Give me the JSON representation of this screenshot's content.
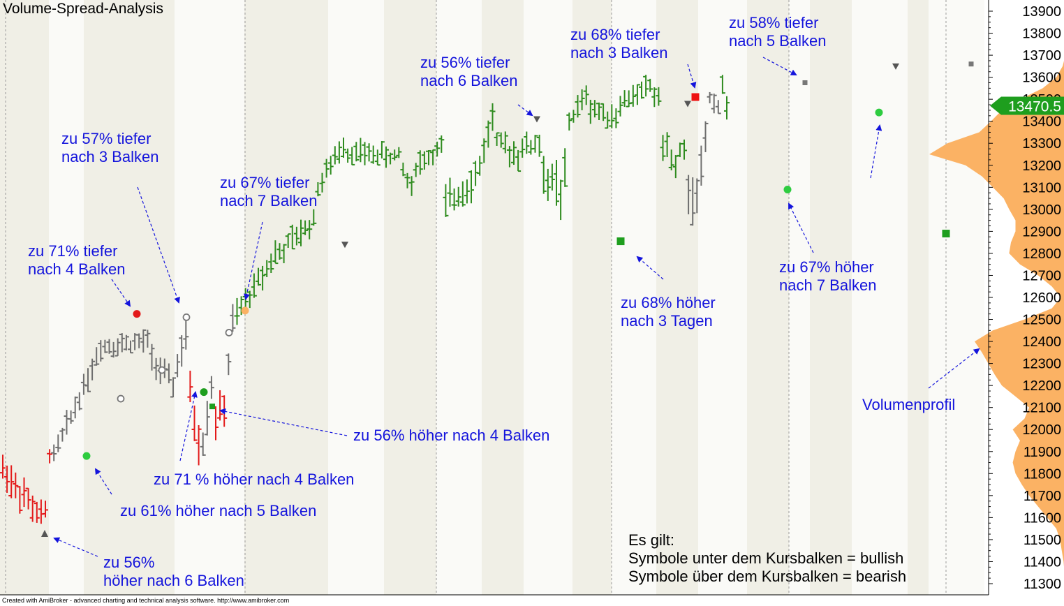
{
  "title": "Volume-Spread-Analysis",
  "credit": "Created with AmiBroker - advanced charting and technical analysis software. http://www.amibroker.com",
  "price_label": "13470.5",
  "notes": {
    "line1": "Es gilt:",
    "line2": "Symbole unter dem Kursbalken = bullish",
    "line3": "Symbole über dem Kursbalken = bearish"
  },
  "annotations": [
    {
      "id": "a1",
      "lines": [
        "zu 71% tiefer",
        "nach 4 Balken"
      ]
    },
    {
      "id": "a2",
      "lines": [
        "zu 57% tiefer",
        "nach 3 Balken"
      ]
    },
    {
      "id": "a3",
      "lines": [
        "zu 67% tiefer",
        "nach 7 Balken"
      ]
    },
    {
      "id": "a4",
      "lines": [
        "zu 56% tiefer",
        "nach 6 Balken"
      ]
    },
    {
      "id": "a5",
      "lines": [
        "zu 68% tiefer",
        "nach 3 Balken"
      ]
    },
    {
      "id": "a6",
      "lines": [
        "zu 58% tiefer",
        "nach 5 Balken"
      ]
    },
    {
      "id": "a7",
      "lines": [
        "zu 56% höher nach 4 Balken"
      ]
    },
    {
      "id": "a8",
      "lines": [
        "zu 71 % höher nach 4 Balken"
      ]
    },
    {
      "id": "a9",
      "lines": [
        "zu 61% höher nach 5 Balken"
      ]
    },
    {
      "id": "a10",
      "lines": [
        "zu 56%",
        "höher nach 6 Balken"
      ]
    },
    {
      "id": "a11",
      "lines": [
        "zu 68% höher",
        "nach 3 Tagen"
      ]
    },
    {
      "id": "a12",
      "lines": [
        "zu 67% höher",
        "nach 7 Balken"
      ]
    },
    {
      "id": "a13",
      "lines": [
        "Volumenprofil"
      ]
    }
  ],
  "colors": {
    "bull": "#2e8b1e",
    "bear": "#e31a1a",
    "neutral": "#6e6e6e",
    "volume_profile": "#fbb264",
    "annotation": "#1414dc",
    "price_label_bg": "#1e9e1e",
    "band": "#f0efe6"
  },
  "chart_data": {
    "type": "ohlc",
    "y_axis": {
      "min": 11250,
      "max": 13950,
      "ticks": [
        11300,
        11400,
        11500,
        11600,
        11700,
        11800,
        11900,
        12000,
        12100,
        12200,
        12300,
        12400,
        12500,
        12600,
        12700,
        12800,
        12900,
        13000,
        13100,
        13200,
        13300,
        13400,
        13500,
        13600,
        13700,
        13800,
        13900
      ]
    },
    "last_price": 13470.5,
    "segments": [
      {
        "color": "bear",
        "from": 11820,
        "to": 11600,
        "n": 10,
        "amp": 90
      },
      {
        "color": "bear",
        "from": 11620,
        "to": 11900,
        "n": 2,
        "amp": 60
      },
      {
        "color": "neutral",
        "from": 11880,
        "to": 12330,
        "n": 11,
        "amp": 60
      },
      {
        "color": "neutral",
        "from": 12380,
        "to": 12400,
        "n": 12,
        "amp": 60
      },
      {
        "color": "neutral",
        "from": 12320,
        "to": 12200,
        "n": 6,
        "amp": 70
      },
      {
        "color": "neutral",
        "from": 12300,
        "to": 12420,
        "n": 3,
        "amp": 100
      },
      {
        "color": "bear",
        "from": 12150,
        "to": 11950,
        "n": 3,
        "amp": 120
      },
      {
        "color": "neutral",
        "from": 11950,
        "to": 12200,
        "n": 3,
        "amp": 90
      },
      {
        "color": "bear",
        "from": 12050,
        "to": 12100,
        "n": 3,
        "amp": 90
      },
      {
        "color": "neutral",
        "from": 12300,
        "to": 12480,
        "n": 2,
        "amp": 90
      },
      {
        "color": "bull",
        "from": 12520,
        "to": 12800,
        "n": 10,
        "amp": 70
      },
      {
        "color": "bull",
        "from": 12800,
        "to": 12950,
        "n": 9,
        "amp": 70
      },
      {
        "color": "bull",
        "from": 13100,
        "to": 13300,
        "n": 7,
        "amp": 60
      },
      {
        "color": "bull",
        "from": 13260,
        "to": 13240,
        "n": 13,
        "amp": 60
      },
      {
        "color": "bull",
        "from": 13180,
        "to": 13100,
        "n": 3,
        "amp": 60
      },
      {
        "color": "bull",
        "from": 13200,
        "to": 13280,
        "n": 7,
        "amp": 60
      },
      {
        "color": "bull",
        "from": 13020,
        "to": 13150,
        "n": 8,
        "amp": 90
      },
      {
        "color": "bull",
        "from": 13200,
        "to": 13420,
        "n": 4,
        "amp": 80
      },
      {
        "color": "bull",
        "from": 13300,
        "to": 13250,
        "n": 6,
        "amp": 70
      },
      {
        "color": "bull",
        "from": 13280,
        "to": 13300,
        "n": 5,
        "amp": 70
      },
      {
        "color": "bull",
        "from": 13150,
        "to": 13100,
        "n": 4,
        "amp": 120
      },
      {
        "color": "bull",
        "from": 13050,
        "to": 13150,
        "n": 2,
        "amp": 120
      },
      {
        "color": "bull",
        "from": 13400,
        "to": 13520,
        "n": 5,
        "amp": 60
      },
      {
        "color": "bull",
        "from": 13460,
        "to": 13420,
        "n": 7,
        "amp": 60
      },
      {
        "color": "bull",
        "from": 13480,
        "to": 13560,
        "n": 8,
        "amp": 60
      },
      {
        "color": "bull",
        "from": 13520,
        "to": 13500,
        "n": 2,
        "amp": 80
      },
      {
        "color": "bull",
        "from": 13300,
        "to": 13200,
        "n": 4,
        "amp": 80
      },
      {
        "color": "bull",
        "from": 13250,
        "to": 13250,
        "n": 2,
        "amp": 60
      },
      {
        "color": "neutral",
        "from": 13100,
        "to": 13050,
        "n": 2,
        "amp": 150
      },
      {
        "color": "neutral",
        "from": 13050,
        "to": 13300,
        "n": 3,
        "amp": 100
      },
      {
        "color": "neutral",
        "from": 13500,
        "to": 13480,
        "n": 3,
        "amp": 60
      },
      {
        "color": "bull",
        "from": 13560,
        "to": 13470,
        "n": 2,
        "amp": 70
      }
    ],
    "markers": [
      {
        "shape": "tri-up",
        "color": "#555555",
        "x": 64,
        "y": 11525
      },
      {
        "shape": "dot",
        "color": "#2ecc40",
        "x": 124,
        "y": 11880
      },
      {
        "shape": "ring",
        "color": "#777777",
        "x": 173,
        "y": 12140
      },
      {
        "shape": "dot",
        "color": "#e31a1a",
        "x": 196,
        "y": 12525
      },
      {
        "shape": "ring",
        "color": "#777777",
        "x": 232,
        "y": 12270
      },
      {
        "shape": "ring",
        "color": "#777777",
        "x": 267,
        "y": 12510
      },
      {
        "shape": "dot",
        "color": "#1e9e1e",
        "x": 292,
        "y": 12170
      },
      {
        "shape": "square",
        "color": "#1e9e1e",
        "x": 304,
        "y": 12105,
        "size": 8
      },
      {
        "shape": "ring",
        "color": "#777777",
        "x": 328,
        "y": 12440
      },
      {
        "shape": "dot",
        "color": "#fbb264",
        "x": 351,
        "y": 12540
      },
      {
        "shape": "tri-down",
        "color": "#555555",
        "x": 494,
        "y": 12840
      },
      {
        "shape": "tri-down",
        "color": "#555555",
        "x": 769,
        "y": 13410
      },
      {
        "shape": "square",
        "color": "#1e9e1e",
        "x": 889,
        "y": 12855,
        "size": 11
      },
      {
        "shape": "tri-down",
        "color": "#555555",
        "x": 985,
        "y": 13480
      },
      {
        "shape": "square",
        "color": "#ee1111",
        "x": 996,
        "y": 13510,
        "size": 11
      },
      {
        "shape": "dot",
        "color": "#2ecc40",
        "x": 1128,
        "y": 13090
      },
      {
        "shape": "square",
        "color": "#777777",
        "x": 1153,
        "y": 13575,
        "size": 7
      },
      {
        "shape": "dot",
        "color": "#2ecc40",
        "x": 1259,
        "y": 13440
      },
      {
        "shape": "tri-down",
        "color": "#555555",
        "x": 1283,
        "y": 13650
      },
      {
        "shape": "square",
        "color": "#1e9e1e",
        "x": 1355,
        "y": 12890,
        "size": 11
      },
      {
        "shape": "square",
        "color": "#777777",
        "x": 1391,
        "y": 13660,
        "size": 7
      }
    ],
    "volume_profile": [
      [
        11300,
        0
      ],
      [
        11400,
        2
      ],
      [
        11450,
        4
      ],
      [
        11500,
        6
      ],
      [
        11550,
        10
      ],
      [
        11600,
        20
      ],
      [
        11650,
        30
      ],
      [
        11700,
        40
      ],
      [
        11750,
        48
      ],
      [
        11800,
        55
      ],
      [
        11850,
        58
      ],
      [
        11900,
        55
      ],
      [
        11950,
        50
      ],
      [
        12000,
        58
      ],
      [
        12050,
        45
      ],
      [
        12100,
        40
      ],
      [
        12150,
        55
      ],
      [
        12200,
        70
      ],
      [
        12250,
        78
      ],
      [
        12300,
        85
      ],
      [
        12350,
        92
      ],
      [
        12400,
        100
      ],
      [
        12450,
        80
      ],
      [
        12500,
        45
      ],
      [
        12550,
        15
      ],
      [
        12600,
        5
      ],
      [
        12650,
        15
      ],
      [
        12700,
        30
      ],
      [
        12750,
        50
      ],
      [
        12800,
        62
      ],
      [
        12850,
        60
      ],
      [
        12900,
        55
      ],
      [
        12950,
        55
      ],
      [
        13000,
        62
      ],
      [
        13050,
        68
      ],
      [
        13100,
        80
      ],
      [
        13150,
        92
      ],
      [
        13200,
        110
      ],
      [
        13250,
        150
      ],
      [
        13300,
        130
      ],
      [
        13350,
        95
      ],
      [
        13400,
        82
      ],
      [
        13450,
        70
      ],
      [
        13500,
        50
      ],
      [
        13550,
        25
      ],
      [
        13600,
        10
      ],
      [
        13650,
        3
      ],
      [
        13700,
        0
      ]
    ]
  }
}
